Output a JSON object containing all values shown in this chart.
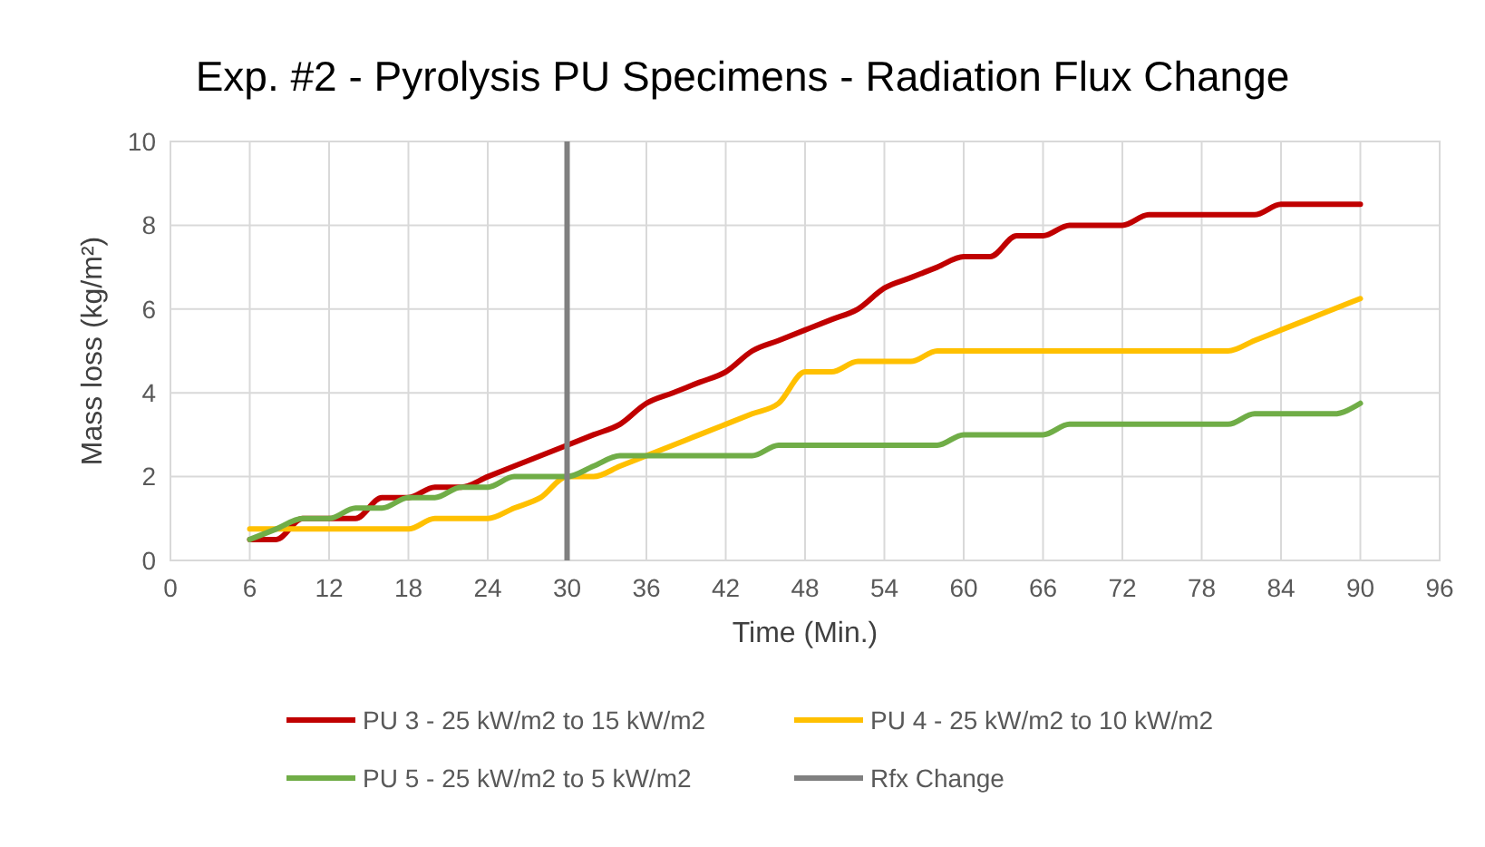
{
  "chart_data": {
    "type": "line",
    "title": "Exp. #2 - Pyrolysis PU Specimens - Radiation Flux Change",
    "xlabel": "Time (Min.)",
    "ylabel": "Mass loss (kg/m²)",
    "x": [
      6,
      8,
      10,
      12,
      14,
      16,
      18,
      20,
      22,
      24,
      26,
      28,
      30,
      32,
      34,
      36,
      38,
      40,
      42,
      44,
      46,
      48,
      50,
      52,
      54,
      56,
      58,
      60,
      62,
      64,
      66,
      68,
      70,
      72,
      74,
      76,
      78,
      80,
      82,
      84,
      86,
      88,
      90
    ],
    "series": [
      {
        "name": "PU 3 - 25 kW/m2 to 15 kW/m2",
        "color": "#c00000",
        "values": [
          0.5,
          0.5,
          1.0,
          1.0,
          1.0,
          1.5,
          1.5,
          1.75,
          1.75,
          2.0,
          2.25,
          2.5,
          2.75,
          3.0,
          3.25,
          3.75,
          4.0,
          4.25,
          4.5,
          5.0,
          5.25,
          5.5,
          5.75,
          6.0,
          6.5,
          6.75,
          7.0,
          7.25,
          7.25,
          7.75,
          7.75,
          8.0,
          8.0,
          8.0,
          8.25,
          8.25,
          8.25,
          8.25,
          8.25,
          8.5,
          8.5,
          8.5,
          8.5
        ]
      },
      {
        "name": "PU 4 - 25 kW/m2 to 10 kW/m2",
        "color": "#ffc000",
        "values": [
          0.75,
          0.75,
          0.75,
          0.75,
          0.75,
          0.75,
          0.75,
          1.0,
          1.0,
          1.0,
          1.25,
          1.5,
          2.0,
          2.0,
          2.25,
          2.5,
          2.75,
          3.0,
          3.25,
          3.5,
          3.75,
          4.5,
          4.5,
          4.75,
          4.75,
          4.75,
          5.0,
          5.0,
          5.0,
          5.0,
          5.0,
          5.0,
          5.0,
          5.0,
          5.0,
          5.0,
          5.0,
          5.0,
          5.25,
          5.5,
          5.75,
          6.0,
          6.25
        ]
      },
      {
        "name": "PU 5 - 25 kW/m2 to 5 kW/m2",
        "color": "#70ad47",
        "values": [
          0.5,
          0.75,
          1.0,
          1.0,
          1.25,
          1.25,
          1.5,
          1.5,
          1.75,
          1.75,
          2.0,
          2.0,
          2.0,
          2.25,
          2.5,
          2.5,
          2.5,
          2.5,
          2.5,
          2.5,
          2.75,
          2.75,
          2.75,
          2.75,
          2.75,
          2.75,
          2.75,
          3.0,
          3.0,
          3.0,
          3.0,
          3.25,
          3.25,
          3.25,
          3.25,
          3.25,
          3.25,
          3.25,
          3.5,
          3.5,
          3.5,
          3.5,
          3.75
        ]
      }
    ],
    "ref_lines": [
      {
        "axis": "x",
        "value": 30,
        "label": "Rfx Change",
        "color": "#808080"
      }
    ],
    "xlim": [
      0,
      96
    ],
    "xticks": [
      0,
      6,
      12,
      18,
      24,
      30,
      36,
      42,
      48,
      54,
      60,
      66,
      72,
      78,
      84,
      90,
      96
    ],
    "ylim": [
      0,
      10
    ],
    "yticks": [
      0,
      2,
      4,
      6,
      8,
      10
    ],
    "grid": true,
    "legend": "bottom",
    "marker": "none",
    "line_style": "solid"
  }
}
